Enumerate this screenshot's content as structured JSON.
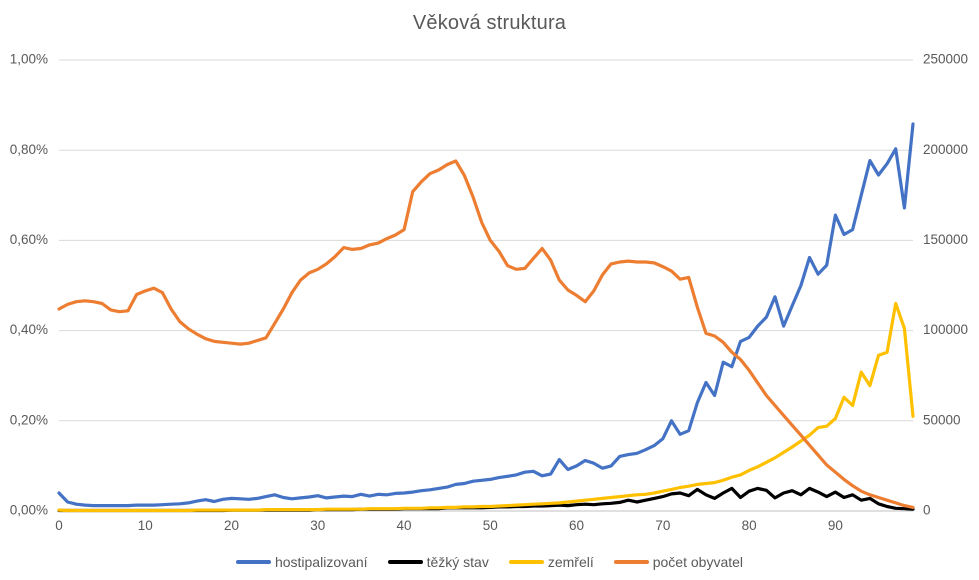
{
  "title": "Věková struktura",
  "colors": {
    "gridline": "#d9d9d9",
    "axis_line": "#c0c0c0",
    "tick_text": "#595959",
    "title_text": "#595959"
  },
  "chart_data": {
    "type": "line",
    "title": "Věková struktura",
    "x_ticks": [
      0,
      10,
      20,
      30,
      40,
      50,
      60,
      70,
      80,
      90
    ],
    "x_range": [
      0,
      99
    ],
    "grid": "horizontal",
    "legend_position": "bottom",
    "left_axis": {
      "ticks": [
        {
          "label": "0,00%",
          "value": 0
        },
        {
          "label": "0,20%",
          "value": 0.2
        },
        {
          "label": "0,40%",
          "value": 0.4
        },
        {
          "label": "0,60%",
          "value": 0.6
        },
        {
          "label": "0,80%",
          "value": 0.8
        },
        {
          "label": "1,00%",
          "value": 1.0
        }
      ],
      "min": 0,
      "max": 1.0
    },
    "right_axis": {
      "ticks": [
        {
          "label": "0",
          "value": 0
        },
        {
          "label": "50000",
          "value": 50000
        },
        {
          "label": "100000",
          "value": 100000
        },
        {
          "label": "150000",
          "value": 150000
        },
        {
          "label": "200000",
          "value": 200000
        },
        {
          "label": "250000",
          "value": 250000
        }
      ],
      "min": 0,
      "max": 250000
    },
    "series": [
      {
        "name": "hostipalizovaní",
        "color": "#4472c4",
        "axis": "left",
        "unit": "%",
        "values": [
          0.04,
          0.02,
          0.015,
          0.013,
          0.012,
          0.012,
          0.012,
          0.012,
          0.012,
          0.013,
          0.013,
          0.013,
          0.014,
          0.015,
          0.016,
          0.018,
          0.022,
          0.025,
          0.021,
          0.026,
          0.028,
          0.027,
          0.026,
          0.028,
          0.032,
          0.036,
          0.03,
          0.027,
          0.029,
          0.031,
          0.034,
          0.029,
          0.031,
          0.033,
          0.032,
          0.037,
          0.033,
          0.037,
          0.036,
          0.039,
          0.04,
          0.042,
          0.045,
          0.047,
          0.05,
          0.053,
          0.059,
          0.061,
          0.066,
          0.068,
          0.07,
          0.074,
          0.077,
          0.08,
          0.086,
          0.088,
          0.078,
          0.082,
          0.114,
          0.092,
          0.1,
          0.112,
          0.106,
          0.095,
          0.1,
          0.121,
          0.125,
          0.128,
          0.136,
          0.145,
          0.16,
          0.2,
          0.17,
          0.178,
          0.24,
          0.285,
          0.256,
          0.33,
          0.32,
          0.376,
          0.385,
          0.41,
          0.43,
          0.475,
          0.41,
          0.455,
          0.5,
          0.562,
          0.525,
          0.545,
          0.656,
          0.613,
          0.624,
          0.7,
          0.777,
          0.745,
          0.77,
          0.803,
          0.672,
          0.858
        ]
      },
      {
        "name": "těžký stav",
        "color": "#000000",
        "axis": "left",
        "unit": "%",
        "values": [
          0.001,
          0.001,
          0.001,
          0.001,
          0.001,
          0.001,
          0.001,
          0.001,
          0.001,
          0.001,
          0.001,
          0.001,
          0.001,
          0.001,
          0.001,
          0.001,
          0.001,
          0.001,
          0.001,
          0.001,
          0.002,
          0.002,
          0.002,
          0.002,
          0.002,
          0.002,
          0.002,
          0.002,
          0.002,
          0.002,
          0.003,
          0.003,
          0.003,
          0.003,
          0.003,
          0.004,
          0.004,
          0.004,
          0.004,
          0.004,
          0.005,
          0.005,
          0.005,
          0.005,
          0.005,
          0.007,
          0.007,
          0.007,
          0.007,
          0.007,
          0.008,
          0.009,
          0.009,
          0.01,
          0.01,
          0.011,
          0.011,
          0.012,
          0.013,
          0.012,
          0.014,
          0.015,
          0.014,
          0.016,
          0.017,
          0.019,
          0.024,
          0.02,
          0.024,
          0.028,
          0.032,
          0.038,
          0.04,
          0.034,
          0.048,
          0.036,
          0.028,
          0.04,
          0.05,
          0.03,
          0.044,
          0.05,
          0.046,
          0.029,
          0.04,
          0.045,
          0.036,
          0.05,
          0.042,
          0.032,
          0.042,
          0.03,
          0.036,
          0.024,
          0.028,
          0.016,
          0.01,
          0.006,
          0.005,
          0.004
        ]
      },
      {
        "name": "zemřelí",
        "color": "#ffc000",
        "axis": "left",
        "unit": "%",
        "values": [
          0.002,
          0.001,
          0.001,
          0.001,
          0.001,
          0.001,
          0.001,
          0.001,
          0.001,
          0.001,
          0.001,
          0.001,
          0.001,
          0.001,
          0.001,
          0.001,
          0.002,
          0.002,
          0.002,
          0.002,
          0.002,
          0.002,
          0.002,
          0.002,
          0.003,
          0.003,
          0.003,
          0.003,
          0.003,
          0.003,
          0.003,
          0.004,
          0.004,
          0.004,
          0.004,
          0.004,
          0.005,
          0.005,
          0.005,
          0.005,
          0.006,
          0.006,
          0.006,
          0.007,
          0.007,
          0.008,
          0.008,
          0.009,
          0.009,
          0.01,
          0.01,
          0.011,
          0.012,
          0.013,
          0.014,
          0.015,
          0.016,
          0.017,
          0.018,
          0.02,
          0.022,
          0.024,
          0.026,
          0.028,
          0.03,
          0.032,
          0.034,
          0.036,
          0.037,
          0.04,
          0.044,
          0.048,
          0.052,
          0.055,
          0.059,
          0.061,
          0.063,
          0.068,
          0.075,
          0.08,
          0.09,
          0.098,
          0.108,
          0.118,
          0.13,
          0.142,
          0.155,
          0.168,
          0.185,
          0.188,
          0.205,
          0.252,
          0.234,
          0.308,
          0.278,
          0.345,
          0.352,
          0.46,
          0.405,
          0.21
        ]
      },
      {
        "name": "počet obyvatel",
        "color": "#ed7d31",
        "axis": "right",
        "unit": "count",
        "values": [
          112000,
          114500,
          116000,
          116500,
          116000,
          115000,
          111500,
          110500,
          111000,
          120000,
          122000,
          123500,
          121000,
          112000,
          105000,
          101000,
          98000,
          95500,
          94000,
          93500,
          93000,
          92500,
          93000,
          94500,
          96000,
          104000,
          112000,
          121000,
          128000,
          132000,
          134000,
          137000,
          141000,
          146000,
          145000,
          145500,
          147500,
          148500,
          151000,
          153000,
          156000,
          177000,
          182500,
          187000,
          189000,
          192000,
          194000,
          186000,
          174000,
          160000,
          150000,
          144000,
          136000,
          134000,
          134500,
          140000,
          145500,
          139000,
          128000,
          122500,
          119500,
          116000,
          122000,
          131000,
          137000,
          138000,
          138500,
          138000,
          138000,
          137500,
          135500,
          133000,
          128500,
          129500,
          113000,
          98500,
          97000,
          93500,
          88000,
          84000,
          78000,
          71000,
          64000,
          58500,
          53000,
          47500,
          42000,
          36500,
          31000,
          25500,
          21500,
          17500,
          14000,
          11000,
          9000,
          7500,
          6000,
          4500,
          3000,
          2000
        ]
      }
    ]
  }
}
